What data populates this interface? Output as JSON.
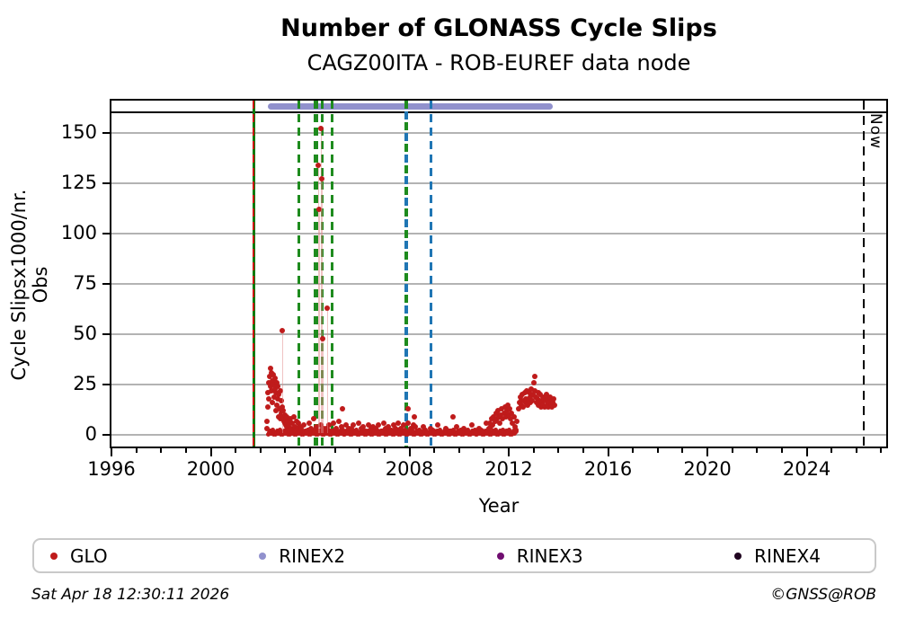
{
  "title": "Number of GLONASS Cycle Slips",
  "subtitle": "CAGZ00ITA - ROB-EUREF data node",
  "footer": {
    "timestamp": "Sat Apr 18 12:30:11 2026",
    "copyright": "©GNSS@ROB"
  },
  "colors": {
    "data_red": "#bf1b1b",
    "stem_pink": "rgba(225,135,135,0.5)",
    "green_dashed": "#1e8b1e",
    "green_solid": "#0b7a0b",
    "red_overlay": "#cc1414",
    "blue_dashed": "#2076b4",
    "rinex2_lavender": "#9191cd",
    "grid_gray": "#b3b3b3",
    "rinex3_purple": "#700d70",
    "rinex4_dark": "#200520"
  },
  "legend": [
    {
      "label": "GLO",
      "color": "#bf1b1b"
    },
    {
      "label": "RINEX2",
      "color": "#9191cd"
    },
    {
      "label": "RINEX3",
      "color": "#700d70"
    },
    {
      "label": "RINEX4",
      "color": "#200520"
    }
  ],
  "chart_data": {
    "type": "scatter",
    "title": "Number of GLONASS Cycle Slips",
    "subtitle": "CAGZ00ITA - ROB-EUREF data node",
    "xlabel": "Year",
    "ylabel": "Cycle Slipsx1000/nr. Obs",
    "xlim": [
      1996,
      2027.2
    ],
    "ylim": [
      -5.7,
      166
    ],
    "x_major_ticks": [
      1996,
      2000,
      2004,
      2008,
      2012,
      2016,
      2020,
      2024
    ],
    "x_minor_step": 1,
    "y_ticks": [
      0,
      25,
      50,
      75,
      100,
      125,
      150
    ],
    "grid": "horizontal",
    "series_name": "GLO",
    "series_color": "#bf1b1b",
    "now_line": {
      "year": 2026.29,
      "label": "Now",
      "color": "#000000"
    },
    "availability_bars": [
      {
        "label": "RINEX2",
        "start": 2002.3,
        "end": 2013.78,
        "color": "#9191cd"
      }
    ],
    "event_lines": [
      {
        "year": 2001.72,
        "style": "solid_with_red_dashes",
        "color": "#0b7a0b",
        "overlay": "#cc1414",
        "width": 3
      },
      {
        "year": 2003.56,
        "style": "dashed",
        "color": "#1e8b1e",
        "width": 3
      },
      {
        "year": 2004.25,
        "style": "dashed",
        "color": "#1e8b1e",
        "width": 5
      },
      {
        "year": 2004.5,
        "style": "dashed",
        "color": "#1e8b1e",
        "width": 3
      },
      {
        "year": 2004.88,
        "style": "dashed",
        "color": "#1e8b1e",
        "width": 3
      },
      {
        "year": 2007.87,
        "style": "dashed_green_blue",
        "color": "#1e8b1e",
        "color2": "#2076b4",
        "width": 4
      },
      {
        "year": 2008.87,
        "style": "dashed",
        "color": "#2076b4",
        "width": 3
      }
    ],
    "zero_band": {
      "start": 2002.33,
      "end": 2012.32,
      "step": 0.035,
      "values_cycle": [
        0.3,
        1.2,
        2.1,
        0.7,
        1.6,
        2.4,
        0.5,
        1.4
      ]
    },
    "points": [
      [
        2002.25,
        3
      ],
      [
        2002.27,
        7
      ],
      [
        2002.29,
        14
      ],
      [
        2002.31,
        21
      ],
      [
        2002.33,
        26
      ],
      [
        2002.35,
        18
      ],
      [
        2002.37,
        29
      ],
      [
        2002.39,
        33
      ],
      [
        2002.41,
        24
      ],
      [
        2002.43,
        31
      ],
      [
        2002.45,
        22
      ],
      [
        2002.47,
        27
      ],
      [
        2002.49,
        16
      ],
      [
        2002.51,
        25
      ],
      [
        2002.53,
        30
      ],
      [
        2002.55,
        19
      ],
      [
        2002.57,
        23
      ],
      [
        2002.59,
        28
      ],
      [
        2002.61,
        12
      ],
      [
        2002.63,
        21
      ],
      [
        2002.65,
        26
      ],
      [
        2002.67,
        15
      ],
      [
        2002.69,
        24
      ],
      [
        2002.71,
        18
      ],
      [
        2002.73,
        9
      ],
      [
        2002.75,
        20
      ],
      [
        2002.77,
        13
      ],
      [
        2002.79,
        22
      ],
      [
        2002.81,
        8
      ],
      [
        2002.83,
        17
      ],
      [
        2002.85,
        11
      ],
      [
        2002.87,
        52
      ],
      [
        2002.89,
        14
      ],
      [
        2002.91,
        9
      ],
      [
        2002.93,
        12
      ],
      [
        2002.95,
        7
      ],
      [
        2002.97,
        10
      ],
      [
        2002.99,
        6
      ],
      [
        2003.01,
        8
      ],
      [
        2003.03,
        5
      ],
      [
        2003.05,
        9
      ],
      [
        2003.07,
        4
      ],
      [
        2003.09,
        7
      ],
      [
        2003.14,
        5
      ],
      [
        2003.19,
        8
      ],
      [
        2003.24,
        3
      ],
      [
        2003.29,
        6
      ],
      [
        2003.34,
        9
      ],
      [
        2003.39,
        4
      ],
      [
        2003.44,
        7
      ],
      [
        2003.49,
        3
      ],
      [
        2003.54,
        6
      ],
      [
        2003.59,
        4
      ],
      [
        2003.65,
        3
      ],
      [
        2003.75,
        5
      ],
      [
        2003.85,
        2
      ],
      [
        2003.95,
        6
      ],
      [
        2004.05,
        3
      ],
      [
        2004.15,
        8
      ],
      [
        2004.25,
        4
      ],
      [
        2004.35,
        2
      ],
      [
        2004.45,
        5
      ],
      [
        2004.55,
        3
      ],
      [
        2004.65,
        3
      ],
      [
        2004.75,
        5
      ],
      [
        2004.85,
        2
      ],
      [
        2004.95,
        6
      ],
      [
        2005.05,
        3
      ],
      [
        2005.15,
        7
      ],
      [
        2005.25,
        4
      ],
      [
        2005.35,
        2
      ],
      [
        2005.45,
        5
      ],
      [
        2005.55,
        3
      ],
      [
        2005.65,
        3
      ],
      [
        2005.75,
        5
      ],
      [
        2005.85,
        2
      ],
      [
        2005.95,
        6
      ],
      [
        2006.05,
        3
      ],
      [
        2006.15,
        4
      ],
      [
        2006.25,
        2
      ],
      [
        2006.35,
        5
      ],
      [
        2006.45,
        3
      ],
      [
        2006.55,
        4
      ],
      [
        2006.65,
        3
      ],
      [
        2006.75,
        5
      ],
      [
        2006.85,
        2
      ],
      [
        2006.95,
        6
      ],
      [
        2007.05,
        3
      ],
      [
        2007.15,
        4
      ],
      [
        2007.25,
        2
      ],
      [
        2007.35,
        5
      ],
      [
        2007.45,
        3
      ],
      [
        2007.55,
        6
      ],
      [
        2007.65,
        3
      ],
      [
        2007.75,
        5
      ],
      [
        2007.85,
        2
      ],
      [
        2007.95,
        6
      ],
      [
        2008.05,
        3
      ],
      [
        2008.15,
        5
      ],
      [
        2008.25,
        4
      ],
      [
        2004.33,
        134
      ],
      [
        2004.36,
        112
      ],
      [
        2004.44,
        152
      ],
      [
        2004.46,
        127
      ],
      [
        2004.52,
        48
      ],
      [
        2004.68,
        63
      ],
      [
        2005.32,
        13
      ],
      [
        2007.93,
        13
      ],
      [
        2008.18,
        9
      ],
      [
        2008.4,
        2
      ],
      [
        2008.55,
        4
      ],
      [
        2008.7,
        1
      ],
      [
        2008.85,
        3
      ],
      [
        2009.0,
        2
      ],
      [
        2009.15,
        5
      ],
      [
        2009.3,
        1
      ],
      [
        2009.45,
        3
      ],
      [
        2009.6,
        2
      ],
      [
        2009.75,
        9
      ],
      [
        2009.9,
        4
      ],
      [
        2010.05,
        1
      ],
      [
        2010.2,
        3
      ],
      [
        2010.35,
        2
      ],
      [
        2010.5,
        5
      ],
      [
        2010.65,
        1
      ],
      [
        2010.8,
        3
      ],
      [
        2010.95,
        2
      ],
      [
        2011.1,
        6
      ],
      [
        2011.2,
        3
      ],
      [
        2011.24,
        6
      ],
      [
        2011.28,
        4
      ],
      [
        2011.32,
        8
      ],
      [
        2011.36,
        5
      ],
      [
        2011.4,
        9
      ],
      [
        2011.44,
        7
      ],
      [
        2011.48,
        11
      ],
      [
        2011.52,
        8
      ],
      [
        2011.56,
        12
      ],
      [
        2011.6,
        9
      ],
      [
        2011.64,
        6
      ],
      [
        2011.68,
        10
      ],
      [
        2011.72,
        13
      ],
      [
        2011.76,
        8
      ],
      [
        2011.8,
        11
      ],
      [
        2011.84,
        14
      ],
      [
        2011.88,
        9
      ],
      [
        2011.92,
        12
      ],
      [
        2011.96,
        15
      ],
      [
        2012.0,
        10
      ],
      [
        2012.04,
        13
      ],
      [
        2012.08,
        8
      ],
      [
        2012.12,
        11
      ],
      [
        2012.16,
        6
      ],
      [
        2012.2,
        9
      ],
      [
        2012.24,
        4
      ],
      [
        2012.28,
        2
      ],
      [
        2012.34,
        7
      ],
      [
        2012.4,
        13
      ],
      [
        2012.43,
        16
      ],
      [
        2012.46,
        19
      ],
      [
        2012.49,
        15
      ],
      [
        2012.52,
        17
      ],
      [
        2012.55,
        20
      ],
      [
        2012.58,
        14
      ],
      [
        2012.61,
        17
      ],
      [
        2012.64,
        21
      ],
      [
        2012.67,
        16
      ],
      [
        2012.7,
        18
      ],
      [
        2012.73,
        22
      ],
      [
        2012.76,
        15
      ],
      [
        2012.79,
        18
      ],
      [
        2012.82,
        21
      ],
      [
        2012.85,
        16
      ],
      [
        2012.88,
        19
      ],
      [
        2012.91,
        23
      ],
      [
        2012.94,
        17
      ],
      [
        2012.97,
        20
      ],
      [
        2013.0,
        26
      ],
      [
        2013.03,
        29
      ],
      [
        2013.06,
        22
      ],
      [
        2013.09,
        19
      ],
      [
        2013.12,
        16
      ],
      [
        2013.15,
        18
      ],
      [
        2013.18,
        21
      ],
      [
        2013.21,
        15
      ],
      [
        2013.24,
        17
      ],
      [
        2013.27,
        20
      ],
      [
        2013.3,
        14
      ],
      [
        2013.33,
        16
      ],
      [
        2013.36,
        19
      ],
      [
        2013.39,
        15
      ],
      [
        2013.42,
        18
      ],
      [
        2013.45,
        14
      ],
      [
        2013.48,
        17
      ],
      [
        2013.51,
        20
      ],
      [
        2013.54,
        15
      ],
      [
        2013.57,
        18
      ],
      [
        2013.6,
        14
      ],
      [
        2013.63,
        16
      ],
      [
        2013.66,
        19
      ],
      [
        2013.69,
        15
      ],
      [
        2013.72,
        17
      ],
      [
        2013.75,
        14
      ],
      [
        2013.78,
        16
      ],
      [
        2013.81,
        18
      ],
      [
        2013.84,
        15
      ]
    ]
  }
}
